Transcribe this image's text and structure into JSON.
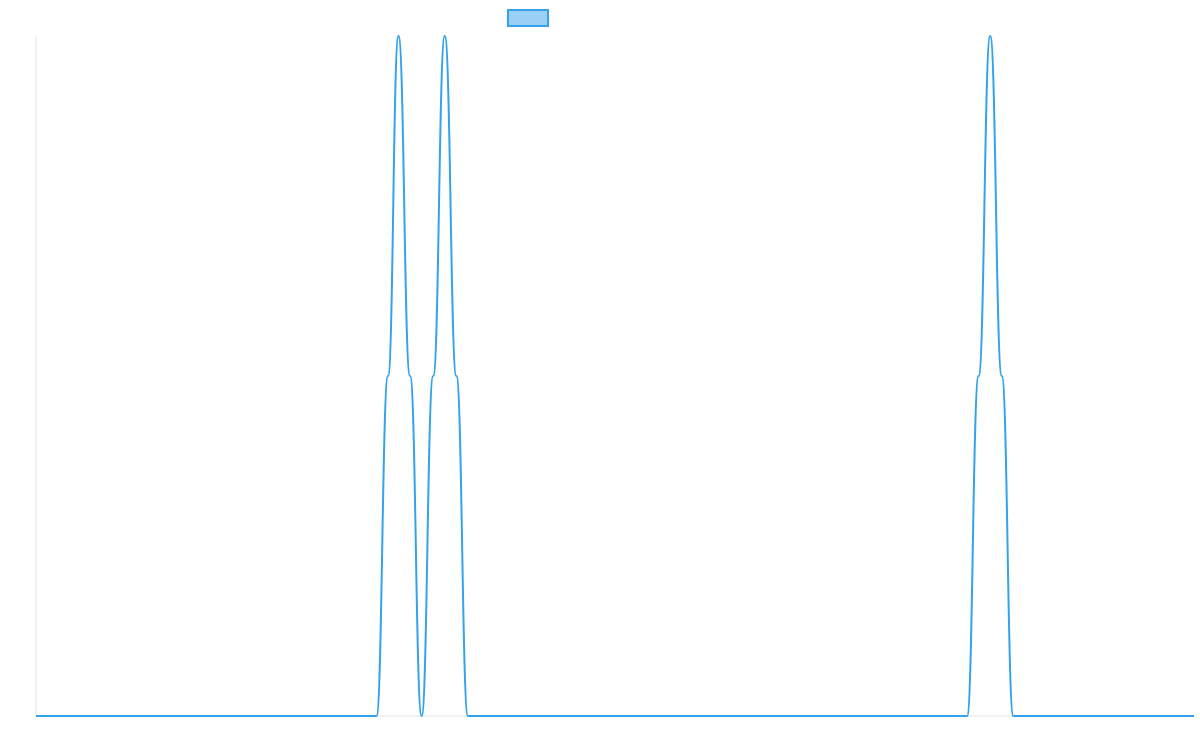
{
  "chart_data": {
    "type": "line",
    "title": "",
    "xlabel": "",
    "ylabel": "",
    "legend": {
      "placement": "top-center",
      "label": ""
    },
    "grid": false,
    "colors": {
      "series_stroke": "#36a2eb",
      "series_fill": "#9ad0f5",
      "axis": "#e5e5e5"
    },
    "xlim": [
      0,
      1
    ],
    "ylim": [
      0,
      1
    ],
    "series": [
      {
        "points": [
          [
            0.0,
            0
          ],
          [
            0.294,
            0
          ],
          [
            0.304,
            0.5
          ],
          [
            0.313,
            1.0
          ],
          [
            0.323,
            0.5
          ],
          [
            0.333,
            0
          ],
          [
            0.343,
            0.5
          ],
          [
            0.353,
            1.0
          ],
          [
            0.363,
            0.5
          ],
          [
            0.373,
            0
          ],
          [
            0.804,
            0
          ],
          [
            0.814,
            0.5
          ],
          [
            0.824,
            1.0
          ],
          [
            0.834,
            0.5
          ],
          [
            0.844,
            0
          ],
          [
            1.0,
            0
          ]
        ]
      }
    ]
  }
}
